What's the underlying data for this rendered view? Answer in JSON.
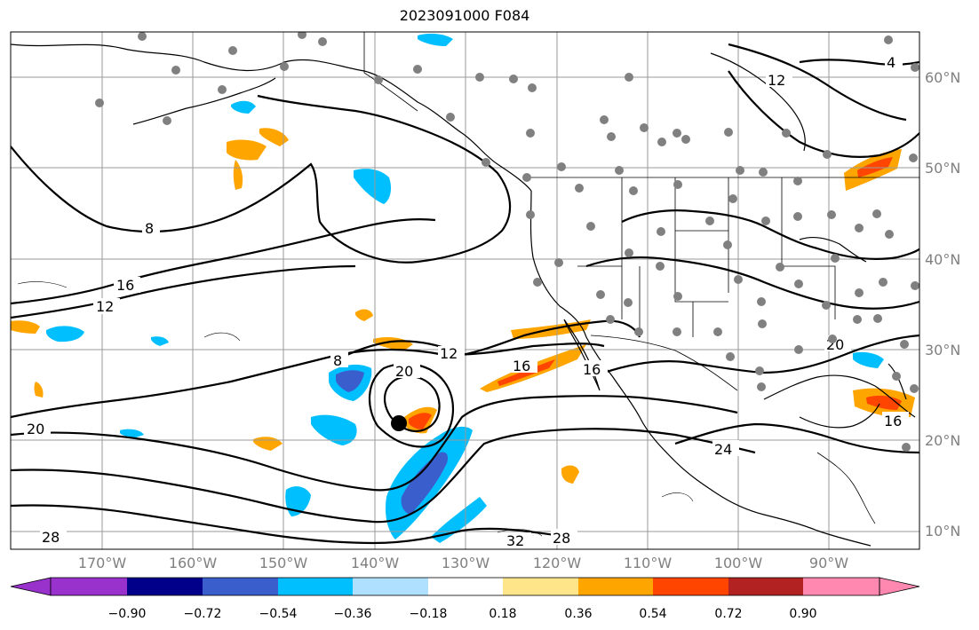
{
  "title": "2023091000 F084",
  "lon_labels": [
    "170°W",
    "160°W",
    "150°W",
    "140°W",
    "130°W",
    "120°W",
    "110°W",
    "100°W",
    "90°W"
  ],
  "lat_labels": [
    "60°N",
    "50°N",
    "40°N",
    "30°N",
    "20°N",
    "10°N"
  ],
  "colorbar": {
    "ticks": [
      "−0.90",
      "−0.72",
      "−0.54",
      "−0.36",
      "−0.18",
      "0.18",
      "0.36",
      "0.54",
      "0.72",
      "0.90"
    ],
    "colors": [
      "#9932cc",
      "#00008b",
      "#3a5fcd",
      "#00bfff",
      "#b0e0ff",
      "#ffffff",
      "#ffe58a",
      "#ffa500",
      "#ff4500",
      "#b22222",
      "#ff88b0"
    ]
  },
  "contour_labels": [
    "8",
    "12",
    "16",
    "20",
    "24",
    "28",
    "32",
    "4"
  ],
  "colors": {
    "grid": "#9a9a9a",
    "station": "#808080",
    "contour": "#000000"
  }
}
